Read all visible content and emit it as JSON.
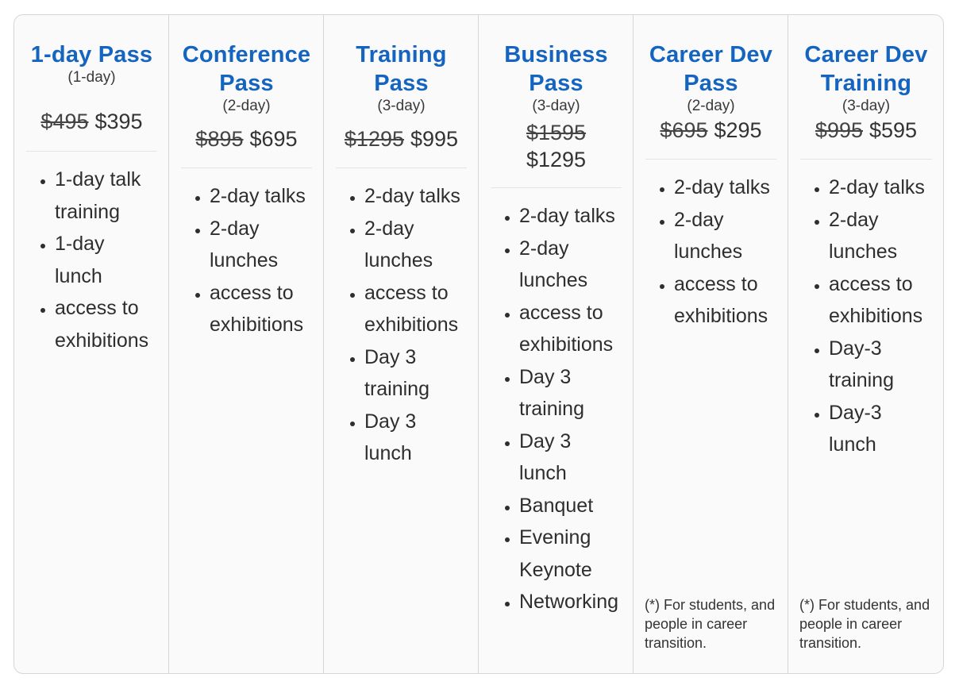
{
  "plans": [
    {
      "title": "1-day Pass",
      "duration": "(1-day)",
      "old_price": "$495",
      "new_price": "$395",
      "features": [
        "1-day talk training",
        "1-day lunch",
        "access to exhibitions"
      ]
    },
    {
      "title": "Conference Pass",
      "duration": "(2-day)",
      "old_price": "$895",
      "new_price": "$695",
      "features": [
        "2-day talks",
        "2-day lunches",
        "access to exhibitions"
      ]
    },
    {
      "title": "Training Pass",
      "duration": "(3-day)",
      "old_price": "$1295",
      "new_price": "$995",
      "features": [
        "2-day talks",
        "2-day lunches",
        "access to exhibitions",
        "Day 3 training",
        "Day 3 lunch"
      ]
    },
    {
      "title": "Business Pass",
      "duration": "(3-day)",
      "old_price": "$1595",
      "new_price": "$1295",
      "features": [
        "2-day talks",
        "2-day lunches",
        "access to exhibitions",
        "Day 3 training",
        "Day 3 lunch",
        "Banquet",
        "Evening Keynote",
        "Networking"
      ]
    },
    {
      "title": "Career Dev Pass",
      "duration": "(2-day)",
      "old_price": "$695",
      "new_price": "$295",
      "features": [
        "2-day talks",
        "2-day lunches",
        "access to exhibitions"
      ],
      "footnote": "(*) For students, and people in career transition."
    },
    {
      "title": "Career Dev Training",
      "duration": "(3-day)",
      "old_price": "$995",
      "new_price": "$595",
      "features": [
        "2-day talks",
        "2-day lunches",
        "access to exhibitions",
        "Day-3 training",
        "Day-3 lunch"
      ],
      "footnote": "(*) For students, and people in career transition."
    }
  ],
  "colors": {
    "title": "#1565c0",
    "border": "#d6d6d6",
    "background": "#fafafa"
  }
}
